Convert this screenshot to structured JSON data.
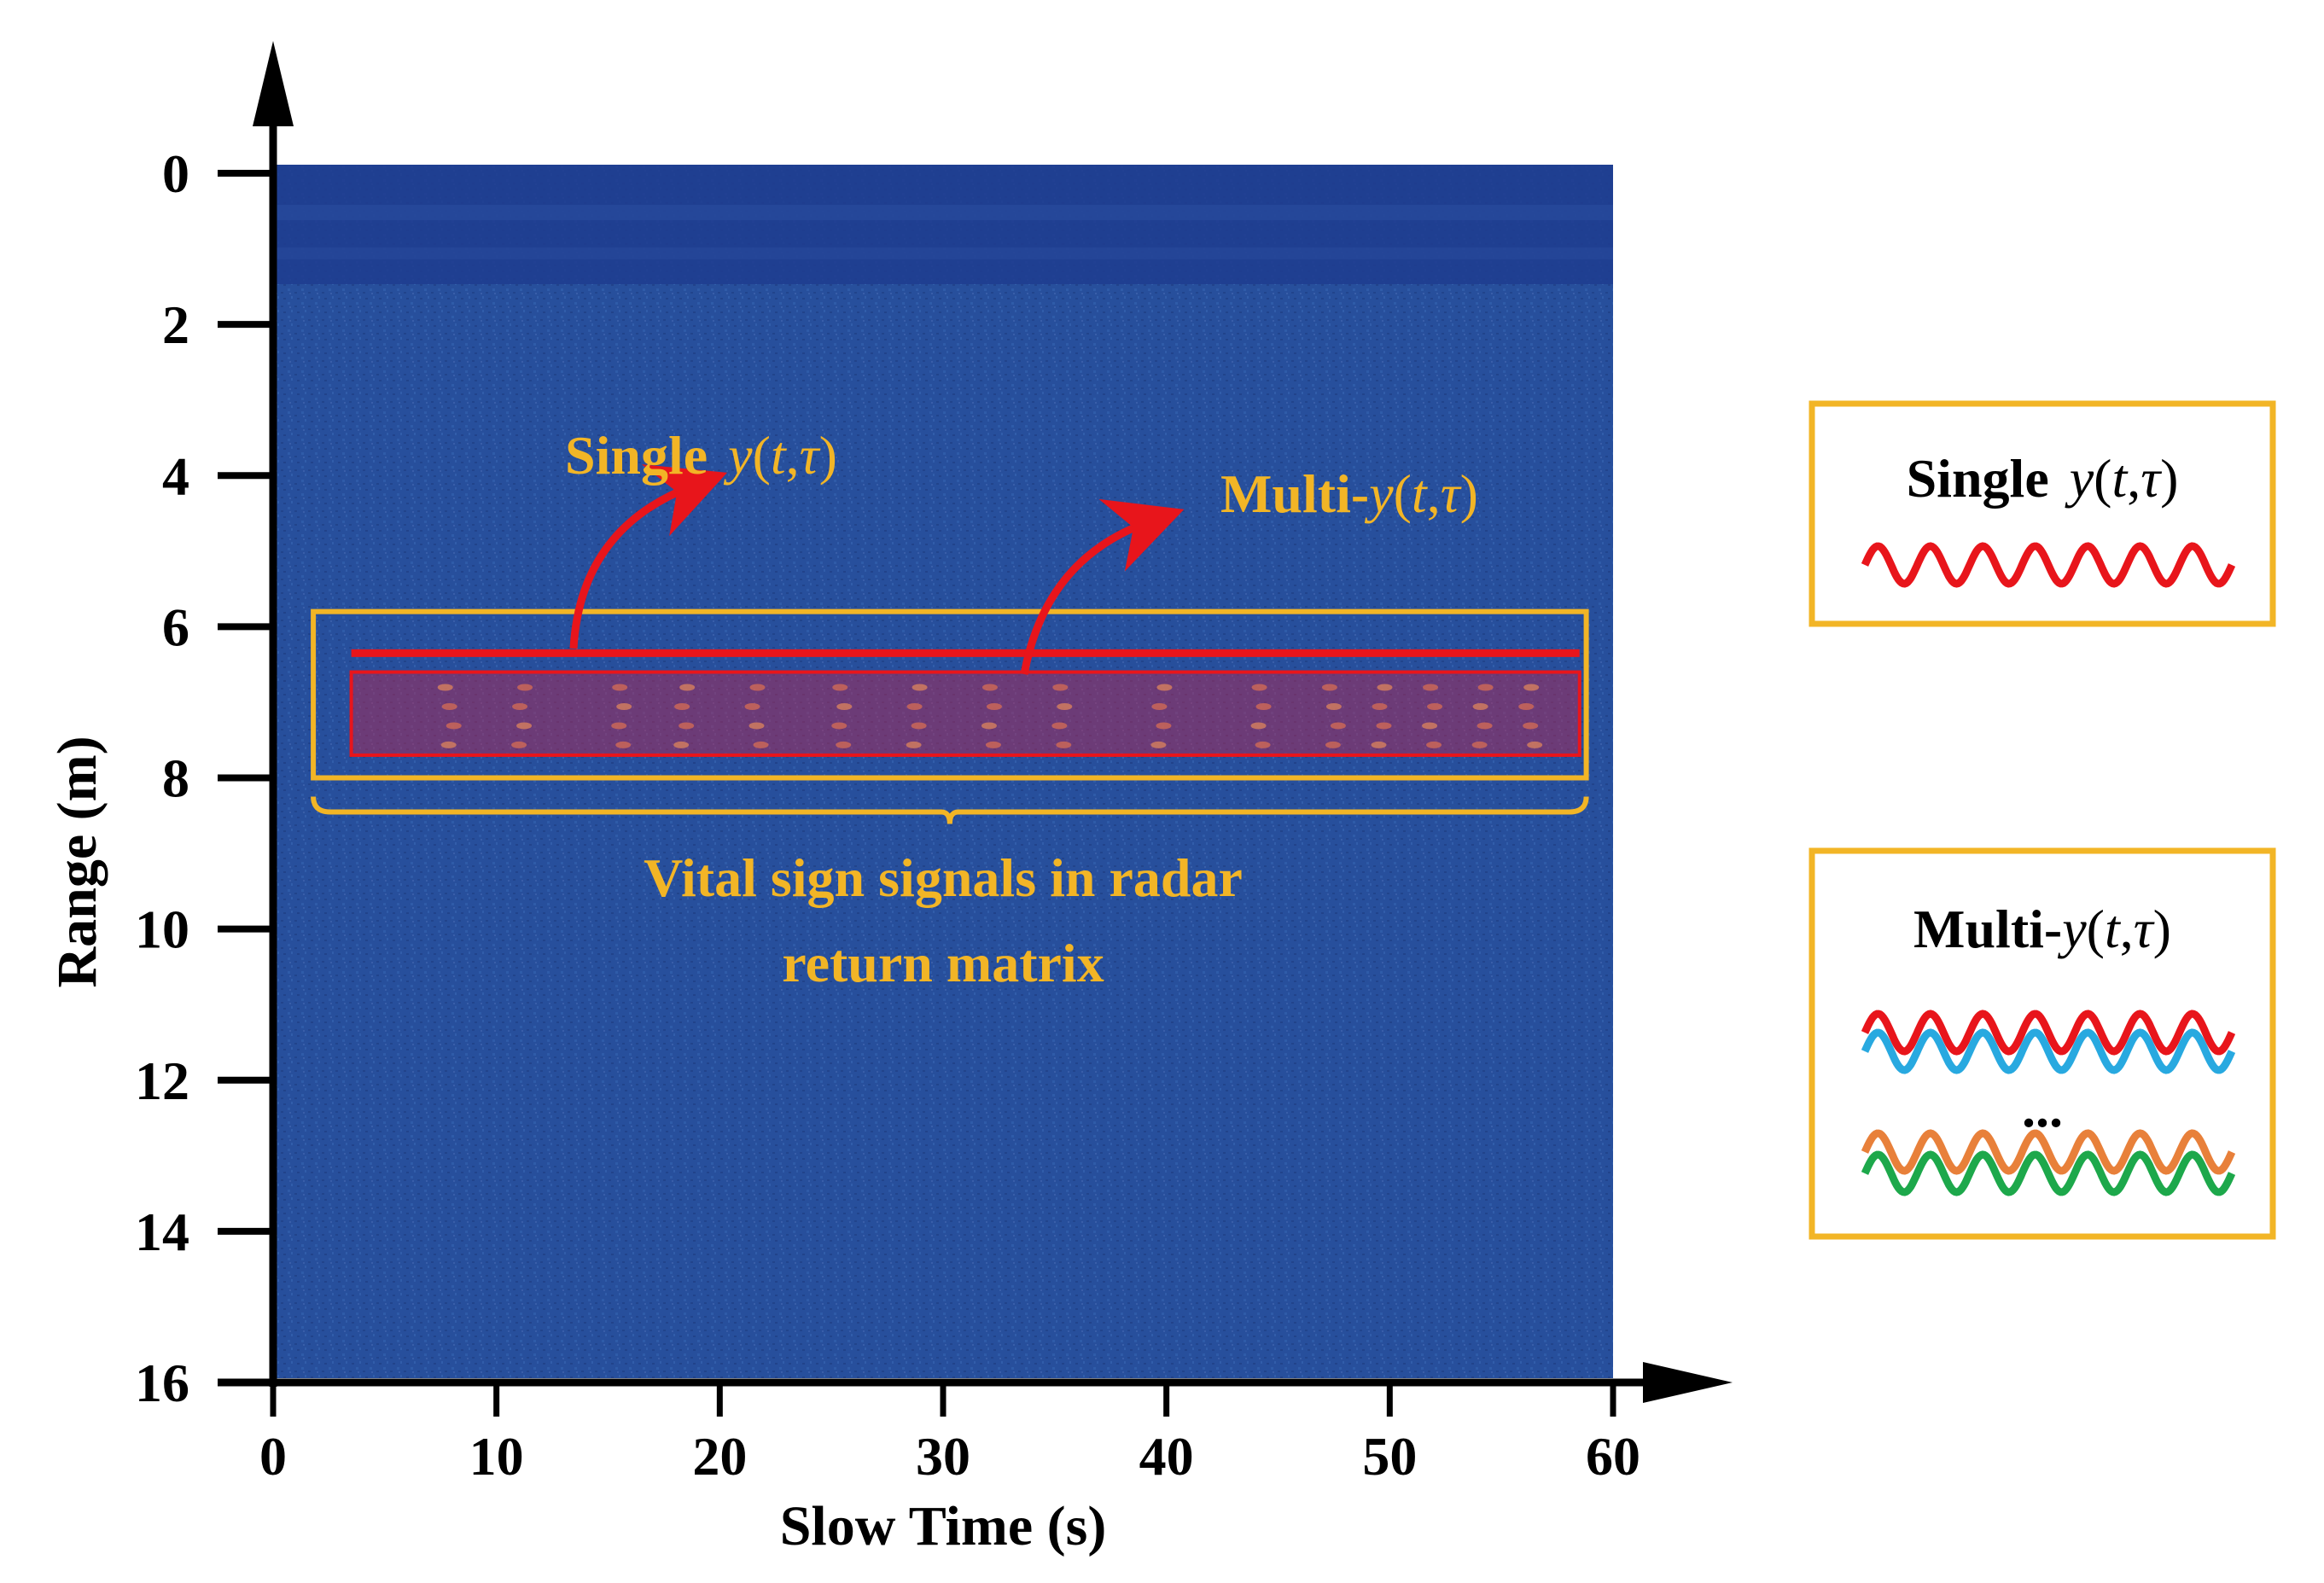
{
  "chart_data": {
    "type": "heatmap",
    "title": "",
    "xlabel": "Slow Time (s)",
    "ylabel": "Range (m)",
    "xlim": [
      0,
      60
    ],
    "ylim": [
      0,
      16
    ],
    "x_ticks": [
      "0",
      "10",
      "20",
      "30",
      "40",
      "50",
      "60"
    ],
    "y_ticks": [
      "0",
      "2",
      "4",
      "6",
      "8",
      "10",
      "12",
      "14",
      "16"
    ],
    "vital_region": {
      "label_line1": "Vital sign signals in radar",
      "label_line2": "return matrix",
      "range_start_m": 5.8,
      "range_end_m": 8.0,
      "time_start_s": 1.8,
      "time_end_s": 58.8
    },
    "single_bin": {
      "range_m": 6.35,
      "time_start_s": 3.5,
      "time_end_s": 58.5
    },
    "multi_bins": {
      "range_start_m": 6.6,
      "range_end_m": 7.7,
      "time_start_s": 3.5,
      "time_end_s": 58.5
    }
  },
  "annotations": {
    "single_bold": "Single ",
    "multi_bold": "Multi-",
    "signal_y": "y",
    "signal_open": "(",
    "signal_t": "t",
    "signal_comma": ",",
    "signal_tau": "τ",
    "signal_close": ")"
  },
  "legend": {
    "single_title_bold": "Single ",
    "multi_title_bold": "Multi-",
    "ellipsis": "...",
    "wave_colors": {
      "red": "#E8151B",
      "blue": "#28A9E0",
      "orange": "#E8803A",
      "green": "#1DA84B"
    }
  },
  "colors": {
    "heatmap_base": "#274F9C",
    "heatmap_top": "#1F3C8F",
    "highlight_yellow": "#F2B526",
    "highlight_red": "#E8151B",
    "axis": "#000000"
  }
}
